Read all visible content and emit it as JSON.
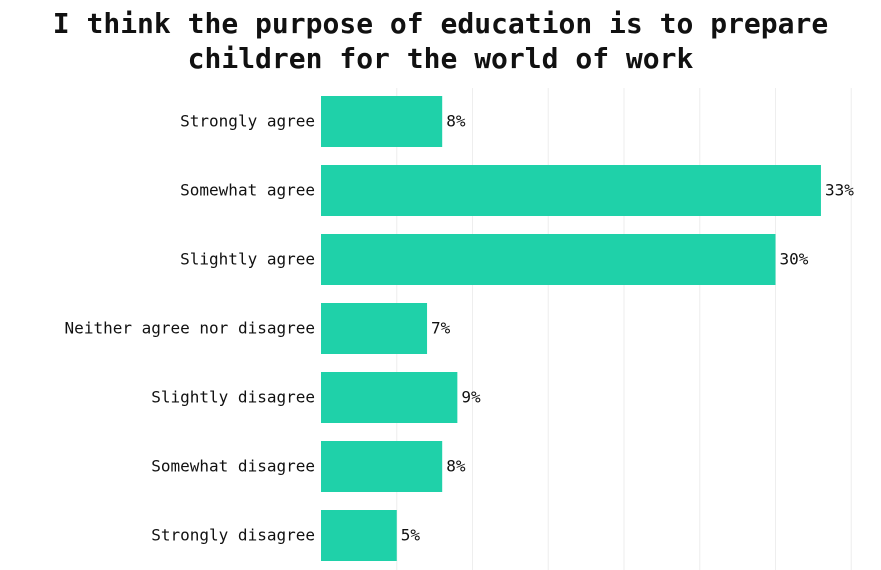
{
  "chart_data": {
    "type": "bar",
    "orientation": "horizontal",
    "title_lines": [
      "I think the purpose of education is to prepare",
      "children for the world of work"
    ],
    "categories": [
      "Strongly agree",
      "Somewhat agree",
      "Slightly agree",
      "Neither agree nor disagree",
      "Slightly disagree",
      "Somewhat disagree",
      "Strongly disagree"
    ],
    "values": [
      8,
      33,
      30,
      7,
      9,
      8,
      5
    ],
    "value_labels": [
      "8%",
      "33%",
      "30%",
      "7%",
      "9%",
      "8%",
      "5%"
    ],
    "xlim": [
      0,
      35
    ],
    "grid": true,
    "bar_color": "#1FD1A9",
    "grid_color": "#EEEEEE"
  }
}
